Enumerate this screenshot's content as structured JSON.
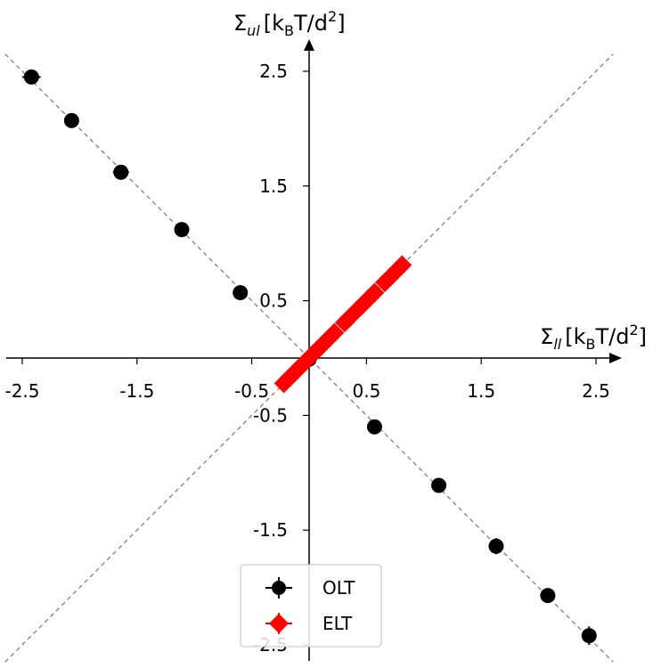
{
  "chart_data": {
    "type": "scatter",
    "xlabel": {
      "main": "Σ",
      "sub": "ll",
      "unit_a": "[k",
      "unit_b": "B",
      "unit_c": "T/d",
      "unit_d": "2",
      "unit_e": "]"
    },
    "ylabel": {
      "main": "Σ",
      "sub": "ul",
      "unit_a": "[k",
      "unit_b": "B",
      "unit_c": "T/d",
      "unit_d": "2",
      "unit_e": "]"
    },
    "xlim": [
      -2.6,
      2.6
    ],
    "ylim": [
      -2.6,
      2.6
    ],
    "x_ticks": [
      -2.5,
      -1.5,
      -0.5,
      0.5,
      1.5,
      2.5
    ],
    "x_tick_labels": [
      "-2.5",
      "-1.5",
      "-0.5",
      "0.5",
      "1.5",
      "2.5"
    ],
    "y_ticks": [
      2.5,
      1.5,
      0.5,
      -0.5,
      -1.5,
      -2.5
    ],
    "y_tick_labels": [
      "2.5",
      "1.5",
      "0.5",
      "-0.5",
      "-1.5",
      "-2.5"
    ],
    "grid": false,
    "legend_position": "bottom-center",
    "reference_lines": [
      "y = x",
      "y = -x"
    ],
    "series": [
      {
        "name": "OLT",
        "marker": "circle",
        "color": "#000000",
        "points": [
          {
            "x": -2.42,
            "y": 2.45,
            "xerr": 0.08,
            "yerr": 0.03
          },
          {
            "x": -2.07,
            "y": 2.07,
            "xerr": 0.06,
            "yerr": 0.03
          },
          {
            "x": -1.64,
            "y": 1.62,
            "xerr": 0.07,
            "yerr": 0.03
          },
          {
            "x": -1.11,
            "y": 1.12,
            "xerr": 0.04,
            "yerr": 0.02
          },
          {
            "x": -0.6,
            "y": 0.57,
            "xerr": 0.03,
            "yerr": 0.02
          },
          {
            "x": 0.0,
            "y": -0.01,
            "xerr": 0.02,
            "yerr": 0.02
          },
          {
            "x": 0.57,
            "y": -0.6,
            "xerr": 0.02,
            "yerr": 0.03
          },
          {
            "x": 1.13,
            "y": -1.11,
            "xerr": 0.02,
            "yerr": 0.04
          },
          {
            "x": 1.63,
            "y": -1.64,
            "xerr": 0.03,
            "yerr": 0.07
          },
          {
            "x": 2.08,
            "y": -2.07,
            "xerr": 0.03,
            "yerr": 0.06
          },
          {
            "x": 2.44,
            "y": -2.42,
            "xerr": 0.03,
            "yerr": 0.08
          }
        ]
      },
      {
        "name": "ELT",
        "marker": "diamond",
        "color": "#ff0000",
        "points": [
          {
            "x": -0.22,
            "y": -0.22
          },
          {
            "x": -0.17,
            "y": -0.17
          },
          {
            "x": -0.13,
            "y": -0.13
          },
          {
            "x": -0.08,
            "y": -0.08
          },
          {
            "x": -0.04,
            "y": -0.04
          },
          {
            "x": 0.04,
            "y": 0.04
          },
          {
            "x": 0.08,
            "y": 0.08
          },
          {
            "x": 0.13,
            "y": 0.13
          },
          {
            "x": 0.17,
            "y": 0.17
          },
          {
            "x": 0.22,
            "y": 0.22
          },
          {
            "x": 0.31,
            "y": 0.31
          },
          {
            "x": 0.35,
            "y": 0.35
          },
          {
            "x": 0.43,
            "y": 0.43
          },
          {
            "x": 0.47,
            "y": 0.47
          },
          {
            "x": 0.53,
            "y": 0.53
          },
          {
            "x": 0.57,
            "y": 0.57
          },
          {
            "x": 0.66,
            "y": 0.66
          },
          {
            "x": 0.7,
            "y": 0.7
          },
          {
            "x": 0.77,
            "y": 0.77
          },
          {
            "x": 0.81,
            "y": 0.81
          }
        ]
      }
    ]
  }
}
